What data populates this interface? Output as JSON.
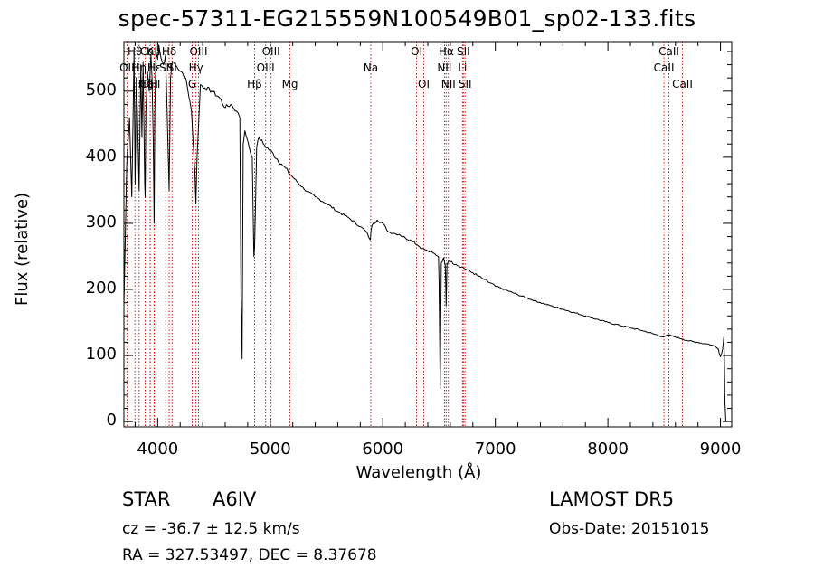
{
  "title": "spec-57311-EG215559N100549B01_sp02-133.fits",
  "footer": {
    "class_label": "STAR",
    "subclass": "A6IV",
    "survey": "LAMOST DR5",
    "cz": "cz = -36.7 ± 12.5 km/s",
    "obs_date": "Obs-Date: 20151015",
    "radec": "RA = 327.53497, DEC =   8.37678"
  },
  "chart_data": {
    "type": "line",
    "xlabel": "Wavelength (Å)",
    "ylabel": "Flux (relative)",
    "xlim": [
      3700,
      9100
    ],
    "ylim": [
      -8,
      575
    ],
    "xticks": [
      4000,
      5000,
      6000,
      7000,
      8000,
      9000
    ],
    "yticks": [
      0,
      100,
      200,
      300,
      400,
      500
    ],
    "grid": false,
    "series": [
      {
        "name": "",
        "color": "#000000",
        "x": [
          3700,
          3725,
          3750,
          3770,
          3790,
          3800,
          3810,
          3820,
          3835,
          3850,
          3860,
          3870,
          3885,
          3889,
          3895,
          3910,
          3925,
          3940,
          3950,
          3960,
          3968,
          3975,
          3985,
          4000,
          4010,
          4030,
          4050,
          4070,
          4090,
          4102,
          4115,
          4130,
          4160,
          4200,
          4250,
          4300,
          4330,
          4340,
          4350,
          4380,
          4420,
          4480,
          4550,
          4600,
          4650,
          4700,
          4730,
          4740,
          4750,
          4760,
          4775,
          4800,
          4840,
          4855,
          4861,
          4868,
          4880,
          4900,
          4950,
          5000,
          5100,
          5200,
          5300,
          5400,
          5500,
          5600,
          5700,
          5800,
          5850,
          5889,
          5896,
          5905,
          5950,
          6000,
          6050,
          6100,
          6150,
          6200,
          6280,
          6300,
          6350,
          6400,
          6450,
          6495,
          6500,
          6510,
          6520,
          6540,
          6555,
          6563,
          6570,
          6585,
          6600,
          6650,
          6700,
          6800,
          6900,
          7000,
          7200,
          7400,
          7600,
          7800,
          8000,
          8200,
          8300,
          8400,
          8498,
          8540,
          8600,
          8662,
          8720,
          8800,
          8860,
          8900,
          8950,
          8980,
          9000,
          9020,
          9030,
          9035,
          9040,
          9048
        ],
        "y": [
          175,
          390,
          460,
          340,
          560,
          360,
          520,
          470,
          350,
          540,
          430,
          545,
          360,
          340,
          470,
          530,
          500,
          555,
          520,
          430,
          300,
          470,
          560,
          548,
          570,
          550,
          540,
          555,
          430,
          350,
          520,
          545,
          540,
          530,
          520,
          470,
          380,
          330,
          400,
          510,
          505,
          500,
          490,
          475,
          480,
          470,
          460,
          200,
          95,
          420,
          440,
          425,
          400,
          250,
          265,
          320,
          415,
          430,
          418,
          410,
          390,
          370,
          352,
          340,
          330,
          318,
          308,
          295,
          288,
          275,
          290,
          297,
          305,
          300,
          287,
          285,
          283,
          278,
          272,
          268,
          262,
          258,
          255,
          250,
          215,
          50,
          240,
          248,
          236,
          175,
          238,
          243,
          242,
          238,
          234,
          225,
          215,
          205,
          192,
          180,
          170,
          160,
          150,
          142,
          138,
          133,
          128,
          131,
          128,
          125,
          122,
          120,
          118,
          117,
          114,
          110,
          98,
          110,
          128,
          95,
          30,
          0
        ]
      }
    ],
    "lines": [
      {
        "label": "Hθ",
        "wavelength": 3798,
        "row": 0
      },
      {
        "label": "CaII",
        "wavelength": 3934,
        "row": 0
      },
      {
        "label": "Hδ",
        "wavelength": 4102,
        "row": 0
      },
      {
        "label": "OIII",
        "wavelength": 4363,
        "row": 0
      },
      {
        "label": "OIII",
        "wavelength": 5007,
        "row": 0
      },
      {
        "label": "OI",
        "wavelength": 6300,
        "row": 0
      },
      {
        "label": "Hα",
        "wavelength": 6563,
        "row": 0
      },
      {
        "label": "SII",
        "wavelength": 6716,
        "row": 0
      },
      {
        "label": "CaII",
        "wavelength": 8542,
        "row": 0
      },
      {
        "label": "OII",
        "wavelength": 3727,
        "row": 1
      },
      {
        "label": "Hη",
        "wavelength": 3835,
        "row": 1
      },
      {
        "label": "Hε",
        "wavelength": 3970,
        "row": 1
      },
      {
        "label": "SII",
        "wavelength": 4072,
        "row": 1
      },
      {
        "label": "Hγ",
        "wavelength": 4340,
        "row": 1
      },
      {
        "label": "OIII",
        "wavelength": 4959,
        "row": 1
      },
      {
        "label": "Na",
        "wavelength": 5893,
        "row": 1
      },
      {
        "label": "NII",
        "wavelength": 6548,
        "row": 1
      },
      {
        "label": "Li",
        "wavelength": 6708,
        "row": 1
      },
      {
        "label": "CaII",
        "wavelength": 8498,
        "row": 1
      },
      {
        "label": "CaII",
        "wavelength": 3933,
        "row": 2
      },
      {
        "label": "Hζ",
        "wavelength": 3889,
        "row": 2
      },
      {
        "label": "G",
        "wavelength": 4307,
        "row": 2
      },
      {
        "label": "Hβ",
        "wavelength": 4861,
        "row": 2
      },
      {
        "label": "Mg",
        "wavelength": 5175,
        "row": 2
      },
      {
        "label": "OI",
        "wavelength": 6364,
        "row": 2
      },
      {
        "label": "NII",
        "wavelength": 6583,
        "row": 2
      },
      {
        "label": "SII",
        "wavelength": 6731,
        "row": 2
      },
      {
        "label": "CaII",
        "wavelength": 8662,
        "row": 2
      },
      {
        "label": "K",
        "wavelength": 3933,
        "row": 0
      },
      {
        "label": "H",
        "wavelength": 3968,
        "row": 2
      },
      {
        "label": "Si",
        "wavelength": 4128,
        "row": 1
      }
    ]
  }
}
